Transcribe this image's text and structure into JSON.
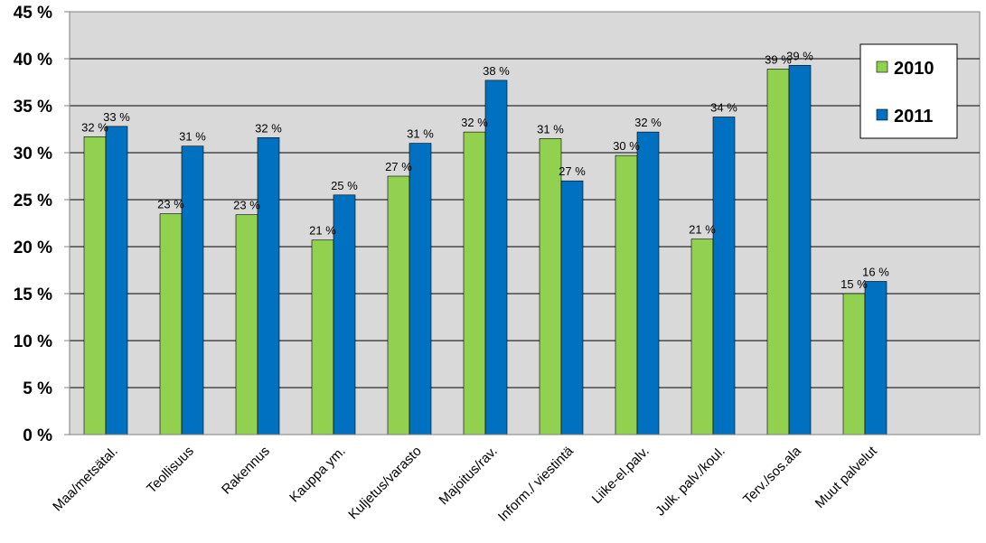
{
  "chart_data": {
    "type": "bar",
    "categories": [
      "Maa/metsätal.",
      "Teollisuus",
      "Rakennus",
      "Kauppa ym.",
      "Kuljetus/varasto",
      "Majoitus/rav.",
      "Inform./ viestintä",
      "Liike-el.palv.",
      "Julk. palv./koul.",
      "Terv./sos.ala",
      "Muut palvelut"
    ],
    "series": [
      {
        "name": "2010",
        "values": [
          31.7,
          23.5,
          23.4,
          20.7,
          27.5,
          32.2,
          31.5,
          29.7,
          20.8,
          38.9,
          15.0
        ],
        "labels": [
          "32 %",
          "23 %",
          "23 %",
          "21 %",
          "27 %",
          "32 %",
          "31 %",
          "30 %",
          "21 %",
          "39 %",
          "15 %"
        ],
        "color": "#92D050"
      },
      {
        "name": "2011",
        "values": [
          32.8,
          30.7,
          31.6,
          25.5,
          31.0,
          37.7,
          27.0,
          32.2,
          33.8,
          39.3,
          16.3
        ],
        "labels": [
          "33 %",
          "31 %",
          "32 %",
          "25 %",
          "31 %",
          "38 %",
          "27 %",
          "32 %",
          "34 %",
          "39 %",
          "16 %"
        ],
        "color": "#0070C0"
      }
    ],
    "title": "",
    "xlabel": "",
    "ylabel": "",
    "ylim": [
      0,
      45
    ],
    "yticks": [
      0,
      5,
      10,
      15,
      20,
      25,
      30,
      35,
      40,
      45
    ],
    "ytick_labels": [
      "0 %",
      "5 %",
      "10 %",
      "15 %",
      "20 %",
      "25 %",
      "30 %",
      "35 %",
      "40 %",
      "45 %"
    ],
    "grid": true,
    "legend": "top-right",
    "plot_background": "#D9D9D9"
  }
}
